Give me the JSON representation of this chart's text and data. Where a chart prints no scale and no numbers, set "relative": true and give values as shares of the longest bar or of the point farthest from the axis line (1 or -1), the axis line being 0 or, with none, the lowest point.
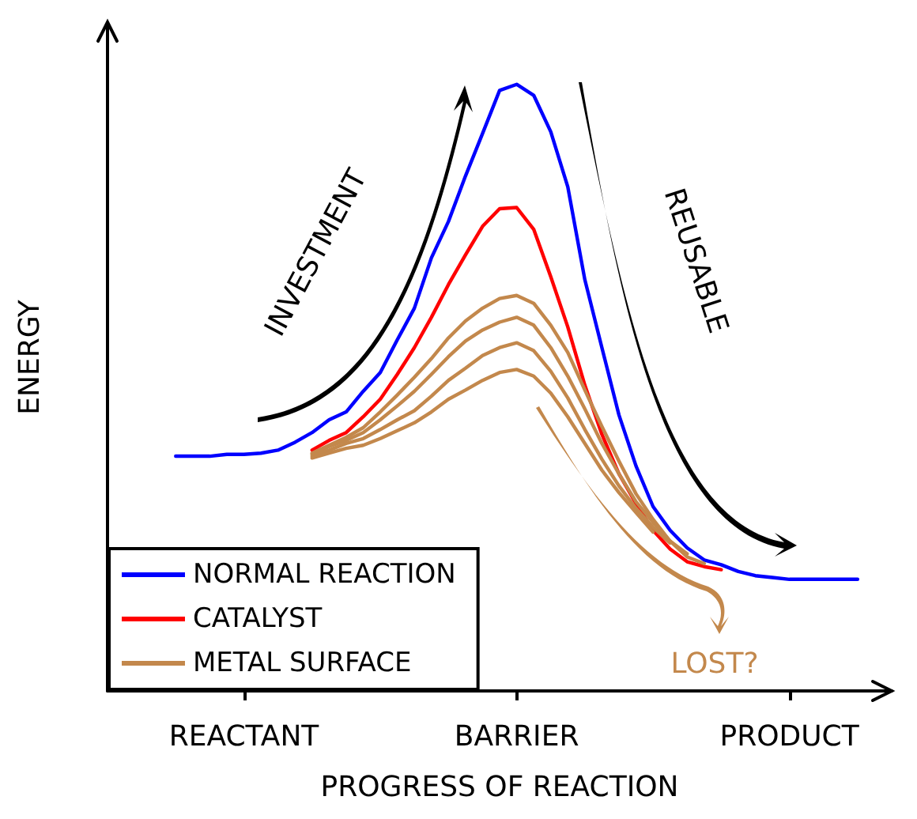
{
  "chart_data": {
    "type": "line",
    "relative": true,
    "xlabel": "PROGRESS OF REACTION",
    "ylabel": "ENERGY",
    "categories": [
      null,
      null,
      null,
      null,
      null,
      null,
      null,
      null,
      "REACTANT",
      null,
      null,
      null,
      null,
      null,
      null,
      null,
      null,
      null,
      null,
      null,
      null,
      null,
      null,
      null,
      "BARRIER",
      null,
      null,
      null,
      null,
      null,
      null,
      null,
      null,
      null,
      null,
      null,
      null,
      null,
      null,
      null,
      "PRODUCT",
      null,
      null,
      null,
      null,
      null,
      null
    ],
    "legend": "bottom left",
    "grid": false,
    "annotations": [
      "INVESTMENT",
      "REUSABLE",
      "LOST?"
    ],
    "series": [
      {
        "name": "NORMAL REACTION",
        "color": "#0000ff",
        "values": [
          null,
          null,
          null,
          null,
          0.387,
          0.387,
          0.387,
          0.39,
          0.39,
          0.392,
          0.397,
          0.41,
          0.426,
          0.447,
          0.46,
          0.494,
          0.525,
          0.579,
          0.631,
          0.714,
          0.774,
          0.849,
          0.919,
          0.99,
          1,
          0.982,
          0.922,
          0.831,
          0.678,
          0.566,
          0.455,
          0.371,
          0.304,
          0.265,
          0.236,
          0.216,
          0.208,
          0.197,
          0.19,
          0.187,
          0.184,
          0.184,
          0.184,
          0.184,
          0.184,
          null,
          null
        ]
      },
      {
        "name": "CATALYST",
        "color": "#ff0000",
        "values": [
          null,
          null,
          null,
          null,
          null,
          null,
          null,
          null,
          null,
          null,
          null,
          null,
          0.397,
          0.413,
          0.426,
          0.452,
          0.481,
          0.522,
          0.566,
          0.616,
          0.67,
          0.719,
          0.766,
          0.795,
          0.797,
          0.761,
          0.683,
          0.6,
          0.504,
          0.423,
          0.358,
          0.309,
          0.265,
          0.234,
          0.213,
          0.205,
          0.2,
          null,
          null,
          null,
          null,
          null,
          null,
          null,
          null,
          null,
          null
        ]
      },
      {
        "name": "METAL SURFACE",
        "color": "#c3884c",
        "values": [
          null,
          null,
          null,
          null,
          null,
          null,
          null,
          null,
          null,
          null,
          null,
          null,
          0.392,
          0.405,
          0.418,
          0.434,
          0.46,
          0.488,
          0.517,
          0.548,
          0.582,
          0.61,
          0.631,
          0.647,
          0.652,
          0.639,
          0.603,
          0.558,
          0.496,
          0.436,
          0.379,
          0.325,
          0.283,
          0.247,
          0.221,
          0.21,
          null,
          null,
          null,
          null,
          null,
          null,
          null,
          null,
          null,
          null,
          null
        ]
      },
      {
        "color": "#c3884c",
        "values": [
          null,
          null,
          null,
          null,
          null,
          null,
          null,
          null,
          null,
          null,
          null,
          null,
          0.39,
          0.403,
          0.413,
          0.426,
          0.447,
          0.47,
          0.494,
          0.522,
          0.551,
          0.577,
          0.595,
          0.608,
          0.616,
          0.603,
          0.566,
          0.519,
          0.465,
          0.408,
          0.358,
          0.312,
          0.278,
          0.247,
          0.226,
          null,
          null,
          null,
          null,
          null,
          null,
          null,
          null,
          null,
          null,
          null,
          null
        ]
      },
      {
        "color": "#c3884c",
        "values": [
          null,
          null,
          null,
          null,
          null,
          null,
          null,
          null,
          null,
          null,
          null,
          null,
          0.387,
          0.397,
          0.408,
          0.416,
          0.431,
          0.447,
          0.462,
          0.486,
          0.512,
          0.532,
          0.553,
          0.566,
          0.574,
          0.561,
          0.527,
          0.483,
          0.431,
          0.382,
          0.338,
          0.301,
          0.27,
          0.244,
          null,
          null,
          null,
          null,
          null,
          null,
          null,
          null,
          null,
          null,
          null,
          null,
          null
        ]
      },
      {
        "color": "#c3884c",
        "values": [
          null,
          null,
          null,
          null,
          null,
          null,
          null,
          null,
          null,
          null,
          null,
          null,
          0.384,
          0.392,
          0.4,
          0.405,
          0.416,
          0.429,
          0.442,
          0.46,
          0.481,
          0.496,
          0.512,
          0.525,
          0.53,
          0.519,
          0.491,
          0.452,
          0.408,
          0.364,
          0.327,
          0.294,
          0.262,
          null,
          null,
          null,
          null,
          null,
          null,
          null,
          null,
          null,
          null,
          null,
          null,
          null,
          null
        ]
      }
    ]
  }
}
